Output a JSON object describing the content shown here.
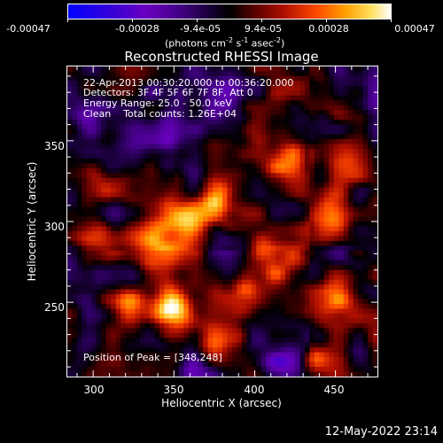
{
  "chart_data": {
    "type": "heatmap",
    "title": "Reconstructed RHESSI Image",
    "xlabel": "Heliocentric X (arcsec)",
    "ylabel": "Heliocentric Y (arcsec)",
    "xlim": [
      284,
      476
    ],
    "ylim": [
      204,
      396
    ],
    "x_ticks": [
      300,
      350,
      400,
      450
    ],
    "y_ticks": [
      250,
      300,
      350
    ],
    "colorbar": {
      "ticks": [
        "-0.00047",
        "-0.00028",
        "-9.4e-05",
        "9.4e-05",
        "0.00028",
        "0.00047"
      ],
      "unit_label": "(photons cm",
      "unit_exp1": "-2",
      "unit_mid": " s",
      "unit_exp2": "-1",
      "unit_mid2": " asec",
      "unit_exp3": "-2",
      "unit_end": ")",
      "range": [
        -0.00047,
        0.00047
      ]
    },
    "annotations": {
      "time": "22-Apr-2013 00:30:20.000 to 00:36:20.000",
      "detectors": "Detectors: 3F 4F 5F 6F 7F 8F, Att 0",
      "energy": "Energy Range: 25.0 - 50.0 keV",
      "clean": "Clean    Total counts: 1.26E+04",
      "peak": "Position of Peak = [348,248]"
    },
    "peak": [
      348,
      248
    ],
    "sources": [
      {
        "x": 348,
        "y": 245,
        "v": 1.0,
        "s": 9
      },
      {
        "x": 358,
        "y": 300,
        "v": 0.75,
        "s": 11
      },
      {
        "x": 340,
        "y": 285,
        "v": 0.6,
        "s": 10
      },
      {
        "x": 320,
        "y": 245,
        "v": 0.55,
        "s": 8
      },
      {
        "x": 392,
        "y": 255,
        "v": 0.55,
        "s": 9
      },
      {
        "x": 410,
        "y": 280,
        "v": 0.6,
        "s": 10
      },
      {
        "x": 445,
        "y": 302,
        "v": 0.7,
        "s": 10
      },
      {
        "x": 450,
        "y": 250,
        "v": 0.55,
        "s": 10
      },
      {
        "x": 420,
        "y": 340,
        "v": 0.6,
        "s": 10
      },
      {
        "x": 380,
        "y": 315,
        "v": 0.5,
        "s": 9
      },
      {
        "x": 455,
        "y": 340,
        "v": 0.45,
        "s": 8
      },
      {
        "x": 300,
        "y": 290,
        "v": 0.4,
        "s": 8
      },
      {
        "x": 440,
        "y": 215,
        "v": 0.35,
        "s": 7
      },
      {
        "x": 375,
        "y": 225,
        "v": 0.4,
        "s": 8
      },
      {
        "x": 310,
        "y": 320,
        "v": 0.3,
        "s": 7
      },
      {
        "x": 340,
        "y": 355,
        "v": -0.45,
        "s": 14
      },
      {
        "x": 375,
        "y": 380,
        "v": -0.35,
        "s": 14
      },
      {
        "x": 300,
        "y": 370,
        "v": -0.3,
        "s": 10
      },
      {
        "x": 415,
        "y": 212,
        "v": -0.6,
        "s": 8
      },
      {
        "x": 360,
        "y": 210,
        "v": -0.35,
        "s": 9
      },
      {
        "x": 295,
        "y": 215,
        "v": -0.3,
        "s": 9
      },
      {
        "x": 470,
        "y": 380,
        "v": -0.25,
        "s": 10
      },
      {
        "x": 385,
        "y": 285,
        "v": -0.25,
        "s": 8
      }
    ]
  },
  "footer": {
    "date": "12-May-2022 23:14"
  }
}
